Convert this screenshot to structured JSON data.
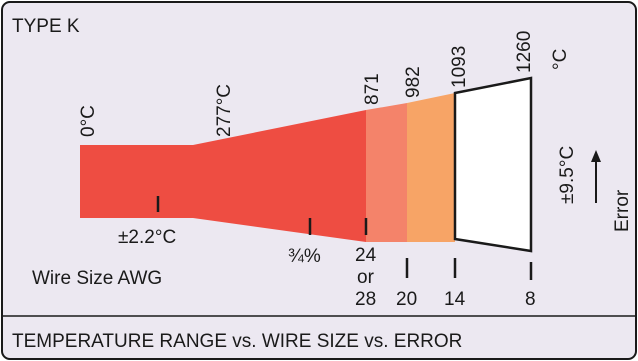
{
  "title": "TYPE K",
  "caption": "TEMPERATURE RANGE vs. WIRE SIZE vs. ERROR",
  "temperature_labels": [
    "0°C",
    "277°C",
    "871",
    "982",
    "1093",
    "1260",
    "°C"
  ],
  "error_labels": {
    "low_error": "±2.2°C",
    "mid_error": "¾%",
    "high_error": "±9.5°C",
    "axis_label": "Error"
  },
  "wire_size": {
    "label": "Wire Size  AWG",
    "gauges": [
      "24",
      "or",
      "28",
      "20",
      "14",
      "8"
    ]
  },
  "colors": {
    "background": "#ece8f1",
    "border": "#1a1a1a",
    "red_band": "#ee4d42",
    "salmon_band": "#f4836a",
    "orange_band": "#f7a466",
    "white_band": "#ffffff"
  }
}
